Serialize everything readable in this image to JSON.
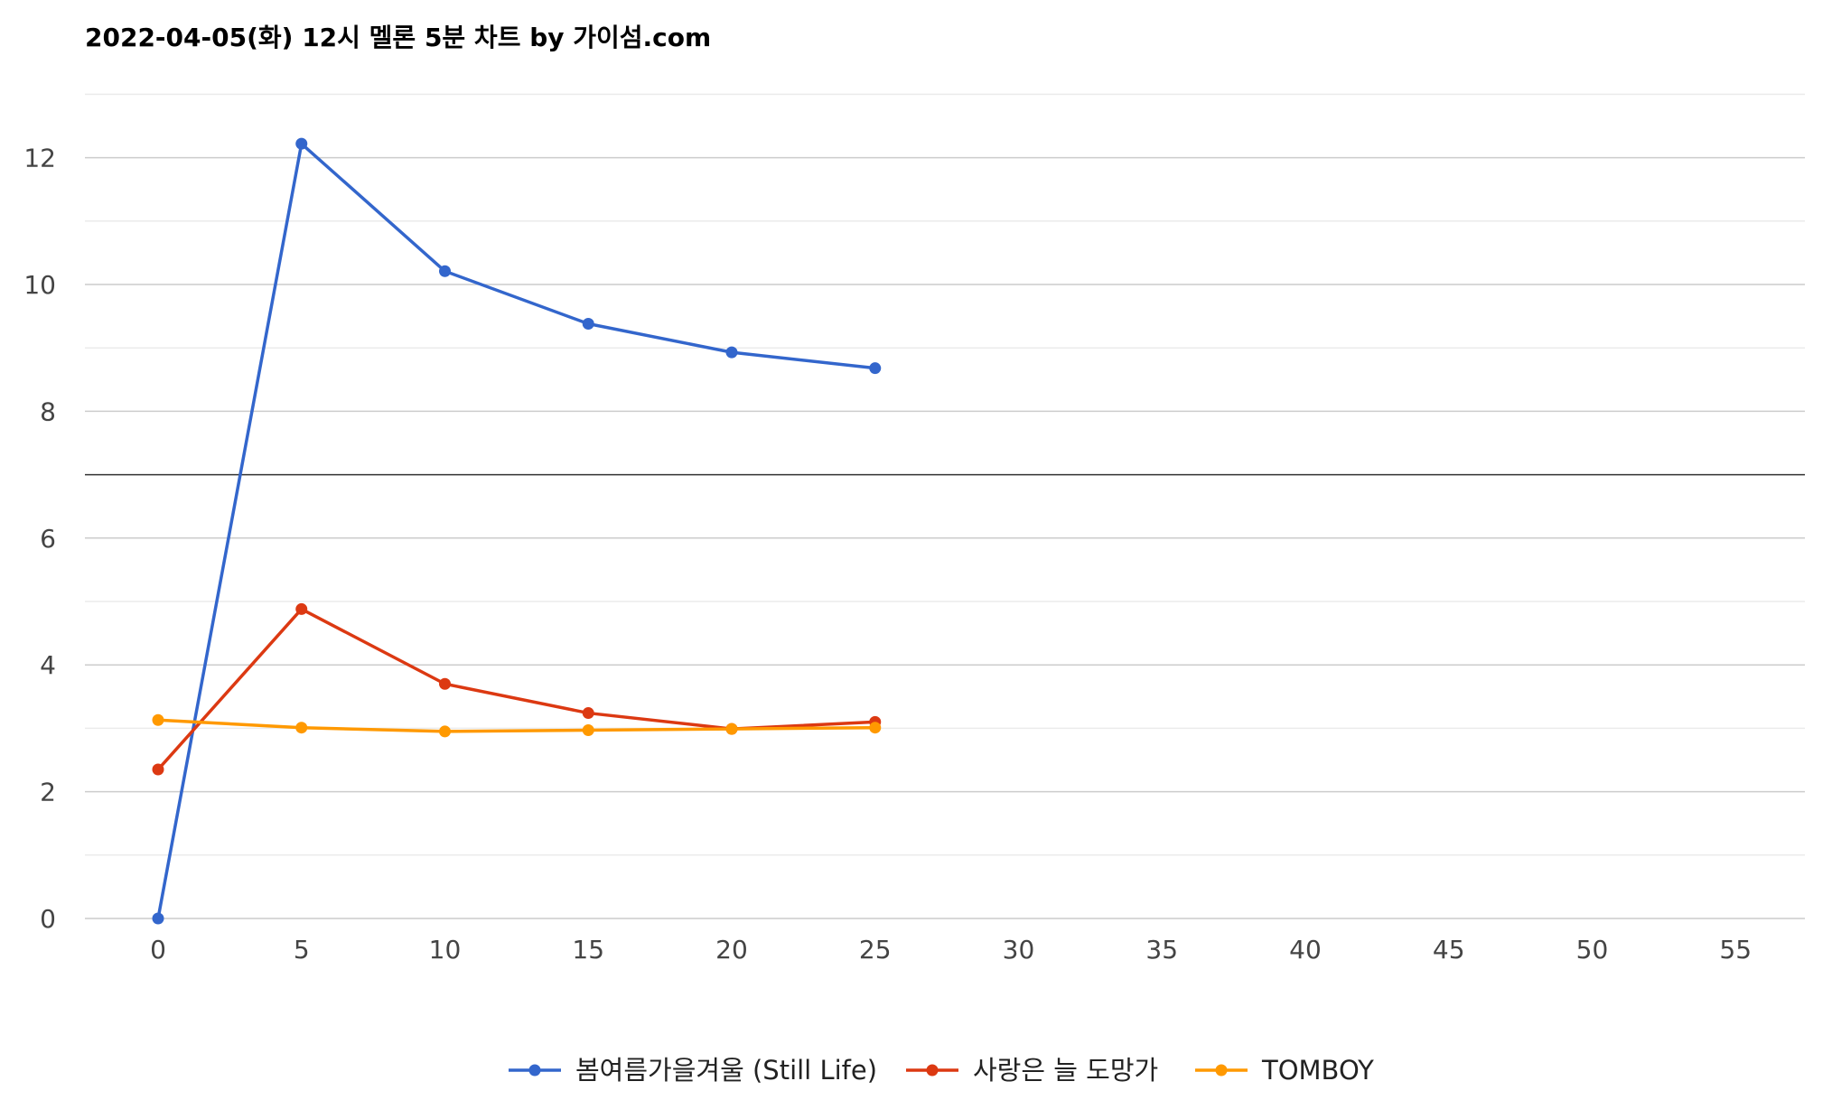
{
  "chart_data": {
    "type": "line",
    "title": "2022-04-05(화) 12시 멜론 5분 차트 by 가이섬.com",
    "xlabel": "",
    "ylabel": "",
    "xlim": [
      -2.5,
      57.5
    ],
    "ylim": [
      0,
      13
    ],
    "x_ticks": [
      0,
      5,
      10,
      15,
      20,
      25,
      30,
      35,
      40,
      45,
      50,
      55
    ],
    "y_ticks": [
      0,
      2,
      4,
      6,
      8,
      10,
      12
    ],
    "y_minor": [
      1,
      3,
      5,
      7,
      9,
      11,
      13
    ],
    "baseline_y": 7,
    "legend_position": "bottom",
    "series": [
      {
        "name": "봄여름가을겨울 (Still Life)",
        "color": "#3366cc",
        "x": [
          0,
          5,
          10,
          15,
          20,
          25
        ],
        "y": [
          0,
          12.22,
          10.21,
          9.38,
          8.93,
          8.68
        ]
      },
      {
        "name": "사랑은 늘 도망가",
        "color": "#dc3912",
        "x": [
          0,
          5,
          10,
          15,
          20,
          25
        ],
        "y": [
          2.35,
          4.88,
          3.7,
          3.24,
          2.99,
          3.1
        ]
      },
      {
        "name": "TOMBOY",
        "color": "#ff9900",
        "x": [
          0,
          5,
          10,
          15,
          20,
          25
        ],
        "y": [
          3.13,
          3.01,
          2.95,
          2.97,
          2.99,
          3.01
        ]
      }
    ]
  }
}
